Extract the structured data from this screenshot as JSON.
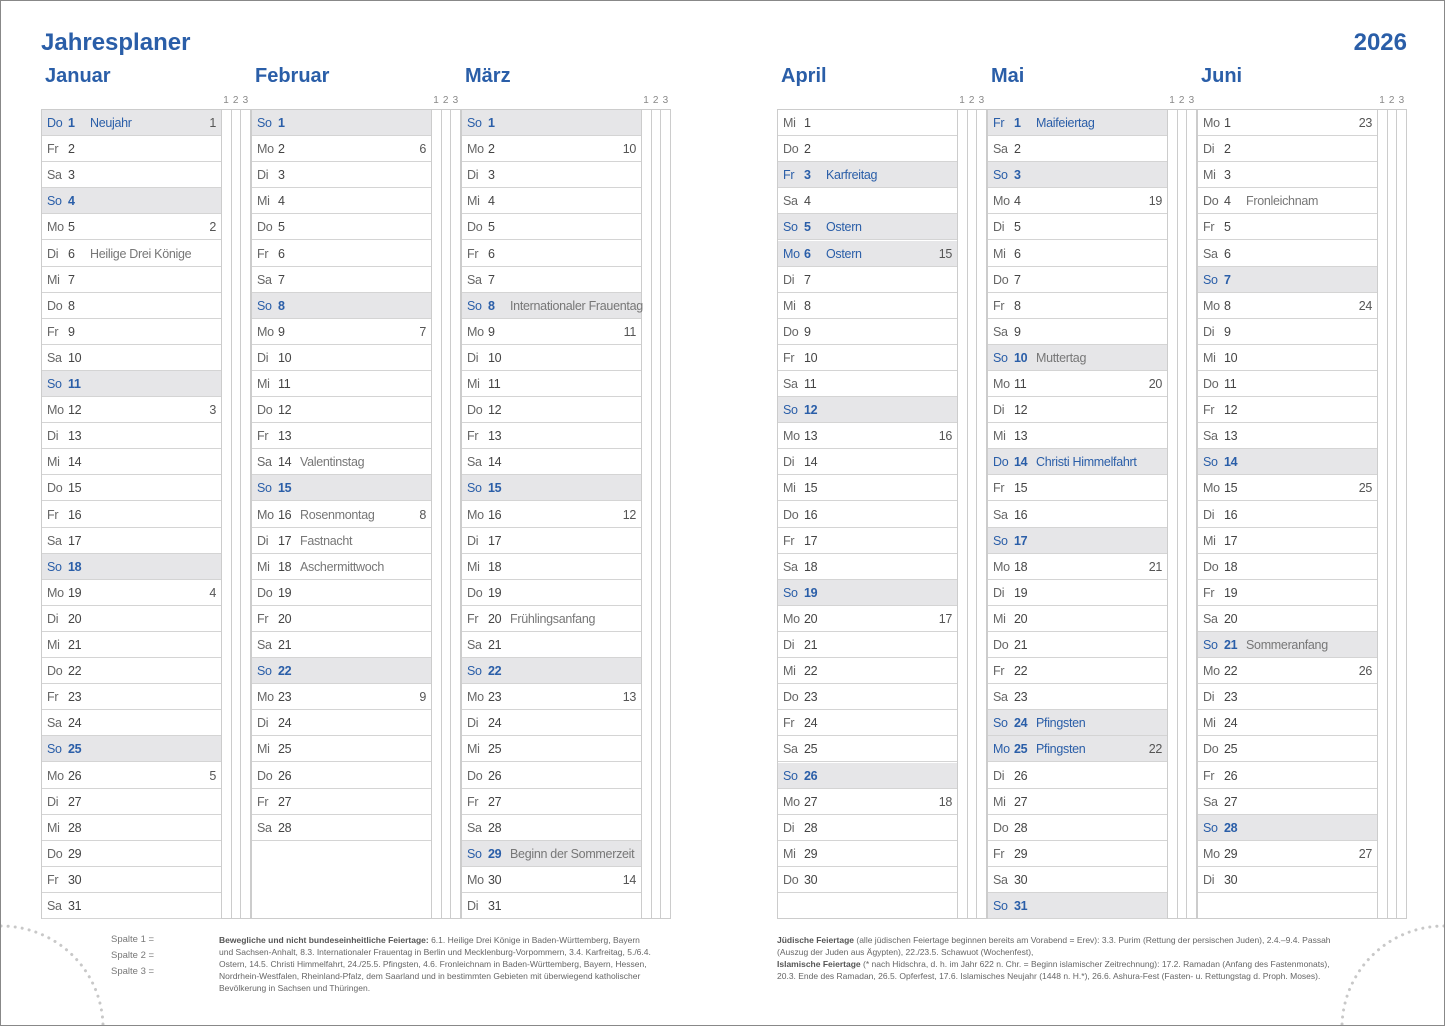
{
  "header": {
    "title": "Jahresplaner",
    "year": "2026"
  },
  "spalten": [
    "1",
    "2",
    "3"
  ],
  "months": [
    {
      "name": "Januar",
      "days": [
        {
          "wt": "Do",
          "tag": 1,
          "kw": 1,
          "text": "Neujahr",
          "feiertag": true
        },
        {
          "wt": "Fr",
          "tag": 2
        },
        {
          "wt": "Sa",
          "tag": 3
        },
        {
          "wt": "So",
          "tag": 4
        },
        {
          "wt": "Mo",
          "tag": 5,
          "kw": 2
        },
        {
          "wt": "Di",
          "tag": 6,
          "text": "Heilige Drei Könige"
        },
        {
          "wt": "Mi",
          "tag": 7
        },
        {
          "wt": "Do",
          "tag": 8
        },
        {
          "wt": "Fr",
          "tag": 9
        },
        {
          "wt": "Sa",
          "tag": 10
        },
        {
          "wt": "So",
          "tag": 11
        },
        {
          "wt": "Mo",
          "tag": 12,
          "kw": 3
        },
        {
          "wt": "Di",
          "tag": 13
        },
        {
          "wt": "Mi",
          "tag": 14
        },
        {
          "wt": "Do",
          "tag": 15
        },
        {
          "wt": "Fr",
          "tag": 16
        },
        {
          "wt": "Sa",
          "tag": 17
        },
        {
          "wt": "So",
          "tag": 18
        },
        {
          "wt": "Mo",
          "tag": 19,
          "kw": 4
        },
        {
          "wt": "Di",
          "tag": 20
        },
        {
          "wt": "Mi",
          "tag": 21
        },
        {
          "wt": "Do",
          "tag": 22
        },
        {
          "wt": "Fr",
          "tag": 23
        },
        {
          "wt": "Sa",
          "tag": 24
        },
        {
          "wt": "So",
          "tag": 25
        },
        {
          "wt": "Mo",
          "tag": 26,
          "kw": 5
        },
        {
          "wt": "Di",
          "tag": 27
        },
        {
          "wt": "Mi",
          "tag": 28
        },
        {
          "wt": "Do",
          "tag": 29
        },
        {
          "wt": "Fr",
          "tag": 30
        },
        {
          "wt": "Sa",
          "tag": 31
        }
      ]
    },
    {
      "name": "Februar",
      "days": [
        {
          "wt": "So",
          "tag": 1
        },
        {
          "wt": "Mo",
          "tag": 2,
          "kw": 6
        },
        {
          "wt": "Di",
          "tag": 3
        },
        {
          "wt": "Mi",
          "tag": 4
        },
        {
          "wt": "Do",
          "tag": 5
        },
        {
          "wt": "Fr",
          "tag": 6
        },
        {
          "wt": "Sa",
          "tag": 7
        },
        {
          "wt": "So",
          "tag": 8
        },
        {
          "wt": "Mo",
          "tag": 9,
          "kw": 7
        },
        {
          "wt": "Di",
          "tag": 10
        },
        {
          "wt": "Mi",
          "tag": 11
        },
        {
          "wt": "Do",
          "tag": 12
        },
        {
          "wt": "Fr",
          "tag": 13
        },
        {
          "wt": "Sa",
          "tag": 14,
          "text": "Valentinstag"
        },
        {
          "wt": "So",
          "tag": 15
        },
        {
          "wt": "Mo",
          "tag": 16,
          "kw": 8,
          "text": "Rosenmontag"
        },
        {
          "wt": "Di",
          "tag": 17,
          "text": "Fastnacht"
        },
        {
          "wt": "Mi",
          "tag": 18,
          "text": "Aschermittwoch"
        },
        {
          "wt": "Do",
          "tag": 19
        },
        {
          "wt": "Fr",
          "tag": 20
        },
        {
          "wt": "Sa",
          "tag": 21
        },
        {
          "wt": "So",
          "tag": 22
        },
        {
          "wt": "Mo",
          "tag": 23,
          "kw": 9
        },
        {
          "wt": "Di",
          "tag": 24
        },
        {
          "wt": "Mi",
          "tag": 25
        },
        {
          "wt": "Do",
          "tag": 26
        },
        {
          "wt": "Fr",
          "tag": 27
        },
        {
          "wt": "Sa",
          "tag": 28
        }
      ]
    },
    {
      "name": "März",
      "days": [
        {
          "wt": "So",
          "tag": 1
        },
        {
          "wt": "Mo",
          "tag": 2,
          "kw": 10
        },
        {
          "wt": "Di",
          "tag": 3
        },
        {
          "wt": "Mi",
          "tag": 4
        },
        {
          "wt": "Do",
          "tag": 5
        },
        {
          "wt": "Fr",
          "tag": 6
        },
        {
          "wt": "Sa",
          "tag": 7
        },
        {
          "wt": "So",
          "tag": 8,
          "text": "Internationaler Frauentag"
        },
        {
          "wt": "Mo",
          "tag": 9,
          "kw": 11
        },
        {
          "wt": "Di",
          "tag": 10
        },
        {
          "wt": "Mi",
          "tag": 11
        },
        {
          "wt": "Do",
          "tag": 12
        },
        {
          "wt": "Fr",
          "tag": 13
        },
        {
          "wt": "Sa",
          "tag": 14
        },
        {
          "wt": "So",
          "tag": 15
        },
        {
          "wt": "Mo",
          "tag": 16,
          "kw": 12
        },
        {
          "wt": "Di",
          "tag": 17
        },
        {
          "wt": "Mi",
          "tag": 18
        },
        {
          "wt": "Do",
          "tag": 19
        },
        {
          "wt": "Fr",
          "tag": 20,
          "text": "Frühlingsanfang"
        },
        {
          "wt": "Sa",
          "tag": 21
        },
        {
          "wt": "So",
          "tag": 22
        },
        {
          "wt": "Mo",
          "tag": 23,
          "kw": 13
        },
        {
          "wt": "Di",
          "tag": 24
        },
        {
          "wt": "Mi",
          "tag": 25
        },
        {
          "wt": "Do",
          "tag": 26
        },
        {
          "wt": "Fr",
          "tag": 27
        },
        {
          "wt": "Sa",
          "tag": 28
        },
        {
          "wt": "So",
          "tag": 29,
          "text": "Beginn der Sommerzeit"
        },
        {
          "wt": "Mo",
          "tag": 30,
          "kw": 14
        },
        {
          "wt": "Di",
          "tag": 31
        }
      ]
    },
    {
      "name": "April",
      "days": [
        {
          "wt": "Mi",
          "tag": 1
        },
        {
          "wt": "Do",
          "tag": 2
        },
        {
          "wt": "Fr",
          "tag": 3,
          "text": "Karfreitag",
          "feiertag": true
        },
        {
          "wt": "Sa",
          "tag": 4
        },
        {
          "wt": "So",
          "tag": 5,
          "text": "Ostern",
          "feiertag": true
        },
        {
          "wt": "Mo",
          "tag": 6,
          "kw": 15,
          "text": "Ostern",
          "feiertag": true
        },
        {
          "wt": "Di",
          "tag": 7
        },
        {
          "wt": "Mi",
          "tag": 8
        },
        {
          "wt": "Do",
          "tag": 9
        },
        {
          "wt": "Fr",
          "tag": 10
        },
        {
          "wt": "Sa",
          "tag": 11
        },
        {
          "wt": "So",
          "tag": 12
        },
        {
          "wt": "Mo",
          "tag": 13,
          "kw": 16
        },
        {
          "wt": "Di",
          "tag": 14
        },
        {
          "wt": "Mi",
          "tag": 15
        },
        {
          "wt": "Do",
          "tag": 16
        },
        {
          "wt": "Fr",
          "tag": 17
        },
        {
          "wt": "Sa",
          "tag": 18
        },
        {
          "wt": "So",
          "tag": 19
        },
        {
          "wt": "Mo",
          "tag": 20,
          "kw": 17
        },
        {
          "wt": "Di",
          "tag": 21
        },
        {
          "wt": "Mi",
          "tag": 22
        },
        {
          "wt": "Do",
          "tag": 23
        },
        {
          "wt": "Fr",
          "tag": 24
        },
        {
          "wt": "Sa",
          "tag": 25
        },
        {
          "wt": "So",
          "tag": 26
        },
        {
          "wt": "Mo",
          "tag": 27,
          "kw": 18
        },
        {
          "wt": "Di",
          "tag": 28
        },
        {
          "wt": "Mi",
          "tag": 29
        },
        {
          "wt": "Do",
          "tag": 30
        }
      ]
    },
    {
      "name": "Mai",
      "days": [
        {
          "wt": "Fr",
          "tag": 1,
          "text": "Maifeiertag",
          "feiertag": true
        },
        {
          "wt": "Sa",
          "tag": 2
        },
        {
          "wt": "So",
          "tag": 3
        },
        {
          "wt": "Mo",
          "tag": 4,
          "kw": 19
        },
        {
          "wt": "Di",
          "tag": 5
        },
        {
          "wt": "Mi",
          "tag": 6
        },
        {
          "wt": "Do",
          "tag": 7
        },
        {
          "wt": "Fr",
          "tag": 8
        },
        {
          "wt": "Sa",
          "tag": 9
        },
        {
          "wt": "So",
          "tag": 10,
          "text": "Muttertag"
        },
        {
          "wt": "Mo",
          "tag": 11,
          "kw": 20
        },
        {
          "wt": "Di",
          "tag": 12
        },
        {
          "wt": "Mi",
          "tag": 13
        },
        {
          "wt": "Do",
          "tag": 14,
          "text": "Christi Himmelfahrt",
          "feiertag": true
        },
        {
          "wt": "Fr",
          "tag": 15
        },
        {
          "wt": "Sa",
          "tag": 16
        },
        {
          "wt": "So",
          "tag": 17
        },
        {
          "wt": "Mo",
          "tag": 18,
          "kw": 21
        },
        {
          "wt": "Di",
          "tag": 19
        },
        {
          "wt": "Mi",
          "tag": 20
        },
        {
          "wt": "Do",
          "tag": 21
        },
        {
          "wt": "Fr",
          "tag": 22
        },
        {
          "wt": "Sa",
          "tag": 23
        },
        {
          "wt": "So",
          "tag": 24,
          "text": "Pfingsten",
          "feiertag": true
        },
        {
          "wt": "Mo",
          "tag": 25,
          "kw": 22,
          "text": "Pfingsten",
          "feiertag": true
        },
        {
          "wt": "Di",
          "tag": 26
        },
        {
          "wt": "Mi",
          "tag": 27
        },
        {
          "wt": "Do",
          "tag": 28
        },
        {
          "wt": "Fr",
          "tag": 29
        },
        {
          "wt": "Sa",
          "tag": 30
        },
        {
          "wt": "So",
          "tag": 31
        }
      ]
    },
    {
      "name": "Juni",
      "days": [
        {
          "wt": "Mo",
          "tag": 1,
          "kw": 23
        },
        {
          "wt": "Di",
          "tag": 2
        },
        {
          "wt": "Mi",
          "tag": 3
        },
        {
          "wt": "Do",
          "tag": 4,
          "text": "Fronleichnam"
        },
        {
          "wt": "Fr",
          "tag": 5
        },
        {
          "wt": "Sa",
          "tag": 6
        },
        {
          "wt": "So",
          "tag": 7
        },
        {
          "wt": "Mo",
          "tag": 8,
          "kw": 24
        },
        {
          "wt": "Di",
          "tag": 9
        },
        {
          "wt": "Mi",
          "tag": 10
        },
        {
          "wt": "Do",
          "tag": 11
        },
        {
          "wt": "Fr",
          "tag": 12
        },
        {
          "wt": "Sa",
          "tag": 13
        },
        {
          "wt": "So",
          "tag": 14
        },
        {
          "wt": "Mo",
          "tag": 15,
          "kw": 25
        },
        {
          "wt": "Di",
          "tag": 16
        },
        {
          "wt": "Mi",
          "tag": 17
        },
        {
          "wt": "Do",
          "tag": 18
        },
        {
          "wt": "Fr",
          "tag": 19
        },
        {
          "wt": "Sa",
          "tag": 20
        },
        {
          "wt": "So",
          "tag": 21,
          "text": "Sommeranfang"
        },
        {
          "wt": "Mo",
          "tag": 22,
          "kw": 26
        },
        {
          "wt": "Di",
          "tag": 23
        },
        {
          "wt": "Mi",
          "tag": 24
        },
        {
          "wt": "Do",
          "tag": 25
        },
        {
          "wt": "Fr",
          "tag": 26
        },
        {
          "wt": "Sa",
          "tag": 27
        },
        {
          "wt": "So",
          "tag": 28
        },
        {
          "wt": "Mo",
          "tag": 29,
          "kw": 27
        },
        {
          "wt": "Di",
          "tag": 30
        }
      ]
    }
  ],
  "legende": [
    "Spalte  1 =",
    "Spalte  2 =",
    "Spalte  3 ="
  ],
  "notes_left": {
    "label": "Bewegliche und nicht bundeseinheitliche Feiertage:",
    "text": " 6.1. Heilige Drei Könige in Baden-Württemberg, Bayern und Sachsen-Anhalt, 8.3. Internationaler Frauentag in Berlin und Mecklenburg-Vorpommern, 3.4. Karfreitag, 5./6.4. Ostern, 14.5. Christi Himmelfahrt, 24./25.5. Pfingsten, 4.6. Fronleichnam in Baden-Württemberg, Bayern, Hessen, Nordrhein-Westfalen, Rheinland-Pfalz, dem Saarland und in bestimmten Gebieten mit überwiegend katholischer Bevölkerung in Sachsen und Thüringen."
  },
  "notes_right": [
    {
      "label": "Jüdische Feiertage",
      "text": " (alle jüdischen Feiertage beginnen bereits am Vorabend = Erev): 3.3. Purim (Rettung der persischen Juden), 2.4.–9.4. Passah (Auszug der Juden aus Ägypten), 22./23.5. Schawuot (Wochenfest),"
    },
    {
      "label": "Islamische Feiertage",
      "text": " (* nach Hidschra, d. h. im Jahr 622 n. Chr. = Beginn islamischer Zeitrechnung): 17.2. Ramadan (Anfang des Fastenmonats), 20.3. Ende des Ramadan, 26.5. Opferfest, 17.6. Islamisches Neujahr (1448 n. H.*), 26.6. Ashura-Fest (Fasten- u. Rettungstag d. Proph. Moses)."
    }
  ]
}
